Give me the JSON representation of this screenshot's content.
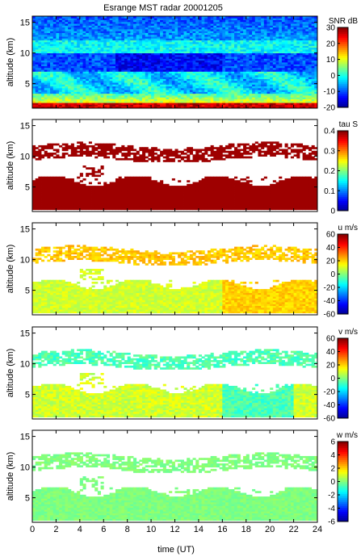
{
  "title": "Esrange MST radar 20001205",
  "xlabel": "time (UT)",
  "colormap": [
    "#00008f",
    "#0000ff",
    "#0080ff",
    "#00ffff",
    "#80ff80",
    "#ffff00",
    "#ff8000",
    "#ff0000",
    "#800000"
  ],
  "chart_data": [
    {
      "type": "heatmap",
      "panel": "snr",
      "ylabel": "altitude (km)",
      "xlim": [
        0,
        24
      ],
      "ylim": [
        1,
        16
      ],
      "xticks": [
        "0",
        "2",
        "4",
        "6",
        "8",
        "10",
        "12",
        "14",
        "16",
        "18",
        "20",
        "22",
        "24"
      ],
      "yticks": [
        "5",
        "10",
        "15"
      ],
      "colorbar": {
        "label": "SNR dB",
        "range": [
          -20,
          30
        ],
        "ticks": [
          "30",
          "20",
          "10",
          "0",
          "-10",
          "-20"
        ]
      }
    },
    {
      "type": "heatmap",
      "panel": "tau",
      "ylabel": "altitude (km)",
      "xlim": [
        0,
        24
      ],
      "ylim": [
        1,
        16
      ],
      "xticks": [
        "0",
        "2",
        "4",
        "6",
        "8",
        "10",
        "12",
        "14",
        "16",
        "18",
        "20",
        "22",
        "24"
      ],
      "yticks": [
        "5",
        "10",
        "15"
      ],
      "colorbar": {
        "label": "tau S",
        "range": [
          0,
          0.4
        ],
        "ticks": [
          "0.4",
          "0.3",
          "0.2",
          "0.1",
          "0"
        ]
      }
    },
    {
      "type": "heatmap",
      "panel": "u",
      "ylabel": "altitude (km)",
      "xlim": [
        0,
        24
      ],
      "ylim": [
        1,
        16
      ],
      "xticks": [
        "0",
        "2",
        "4",
        "6",
        "8",
        "10",
        "12",
        "14",
        "16",
        "18",
        "20",
        "22",
        "24"
      ],
      "yticks": [
        "5",
        "10",
        "15"
      ],
      "colorbar": {
        "label": "u m/s",
        "range": [
          -60,
          60
        ],
        "ticks": [
          "60",
          "40",
          "20",
          "0",
          "-20",
          "-40",
          "-60"
        ]
      }
    },
    {
      "type": "heatmap",
      "panel": "v",
      "ylabel": "altitude (km)",
      "xlim": [
        0,
        24
      ],
      "ylim": [
        1,
        16
      ],
      "xticks": [
        "0",
        "2",
        "4",
        "6",
        "8",
        "10",
        "12",
        "14",
        "16",
        "18",
        "20",
        "22",
        "24"
      ],
      "yticks": [
        "5",
        "10",
        "15"
      ],
      "colorbar": {
        "label": "v m/s",
        "range": [
          -60,
          60
        ],
        "ticks": [
          "60",
          "40",
          "20",
          "0",
          "-20",
          "-40",
          "-60"
        ]
      }
    },
    {
      "type": "heatmap",
      "panel": "w",
      "ylabel": "altitude (km)",
      "xlim": [
        0,
        24
      ],
      "ylim": [
        1,
        16
      ],
      "xticks": [
        "0",
        "2",
        "4",
        "6",
        "8",
        "10",
        "12",
        "14",
        "16",
        "18",
        "20",
        "22",
        "24"
      ],
      "yticks": [
        "5",
        "10",
        "15"
      ],
      "colorbar": {
        "label": "w m/s",
        "range": [
          -6,
          6
        ],
        "ticks": [
          "6",
          "4",
          "2",
          "0",
          "-2",
          "-4",
          "-6"
        ]
      }
    }
  ]
}
